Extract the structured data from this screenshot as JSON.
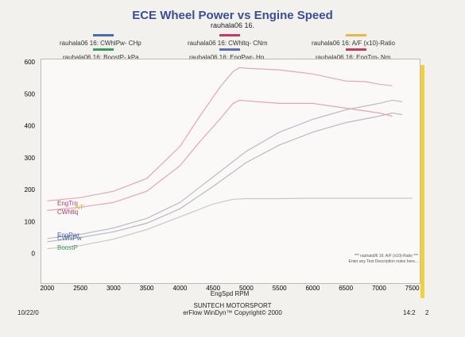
{
  "chart_data": {
    "type": "line",
    "title": "ECE Wheel Power vs Engine Speed",
    "subtitle": "rauhala06 16.",
    "xlabel": "EngSpd  RPM",
    "ylabel": "",
    "xlim": [
      1900,
      7600
    ],
    "ylim": [
      -90,
      610
    ],
    "x_ticks": [
      2000,
      2500,
      3000,
      3500,
      4000,
      4500,
      5000,
      5500,
      6000,
      6500,
      7000,
      7500
    ],
    "y_ticks": [
      0,
      100,
      200,
      300,
      400,
      500,
      600
    ],
    "legend": [
      {
        "label": "rauhala06 16: CWhlPw- CHp",
        "color": "#4f6aa8"
      },
      {
        "label": "rauhala06 16: CWhltq- CNm",
        "color": "#c23c6a"
      },
      {
        "label": "rauhala06 16:  A/F  (x10)-Ratio",
        "color": "#e4b94a"
      },
      {
        "label": "rauhala06 16: BoostP- kPa",
        "color": "#3c9a5e"
      },
      {
        "label": "rauhala06 16: EngPwr-  Hp",
        "color": "#5c6fae"
      },
      {
        "label": "rauhala06 16: EngTrq-  Nm",
        "color": "#c23c6a"
      }
    ],
    "series": [
      {
        "name": "EngTrq",
        "color": "#e0a8b4",
        "x": [
          2000,
          2500,
          3000,
          3500,
          4000,
          4300,
          4600,
          4800,
          4900,
          5000,
          5500,
          6000,
          6500,
          6800,
          7000,
          7200
        ],
        "y": [
          165,
          175,
          195,
          235,
          335,
          430,
          520,
          570,
          582,
          580,
          575,
          562,
          540,
          538,
          530,
          525
        ]
      },
      {
        "name": "EngPwr",
        "color": "#b8bec8",
        "x": [
          2000,
          2500,
          3000,
          3500,
          4000,
          4500,
          5000,
          5500,
          6000,
          6500,
          7000,
          7200,
          7350
        ],
        "y": [
          47,
          60,
          80,
          110,
          160,
          240,
          320,
          380,
          420,
          450,
          470,
          480,
          475
        ]
      },
      {
        "name": "CWhlPw",
        "color": "#b5bac4",
        "x": [
          2000,
          2500,
          3000,
          3500,
          4000,
          4500,
          5000,
          5500,
          6000,
          6500,
          7000,
          7200,
          7350
        ],
        "y": [
          37,
          50,
          68,
          95,
          140,
          210,
          285,
          340,
          380,
          410,
          430,
          440,
          435
        ]
      },
      {
        "name": "CWhltq",
        "color": "#dfa7b2",
        "x": [
          2000,
          2500,
          3000,
          3500,
          4000,
          4300,
          4600,
          4800,
          4900,
          5000,
          5500,
          6000,
          6500,
          7000,
          7200
        ],
        "y": [
          135,
          145,
          160,
          195,
          275,
          350,
          420,
          470,
          480,
          478,
          470,
          470,
          455,
          440,
          430
        ]
      },
      {
        "name": "BoostP",
        "color": "#c8c8c8",
        "x": [
          2000,
          2500,
          3000,
          3500,
          4000,
          4500,
          4800,
          5000,
          5500,
          6000,
          6500,
          7000,
          7500
        ],
        "y": [
          15,
          25,
          45,
          75,
          115,
          155,
          170,
          172,
          172,
          173,
          173,
          173,
          173
        ]
      }
    ],
    "series_labels": [
      {
        "text": "EngTrq",
        "color": "#c23c6a"
      },
      {
        "text": "A/F",
        "color": "#d9b34c"
      },
      {
        "text": "CWhltq",
        "color": "#b03b6c"
      },
      {
        "text": "EngPwr",
        "color": "#4f6aa8"
      },
      {
        "text": "CWhlPw",
        "color": "#4f6aa8"
      },
      {
        "text": "BoostP",
        "color": "#3c9a5e"
      }
    ],
    "annotation": {
      "line1": "*** rauhala06 16:  A/F  (x10)-Ratio ***",
      "line2": "Enter any Test Description notes here..."
    },
    "grid": false,
    "legend_placement": "top"
  },
  "footer": {
    "date": "10/22/0",
    "company": "SUNTECH MOTORSPORT",
    "software": "erFlow WinDyn™   Copyright© 2000",
    "time": "14:2",
    "page": "2"
  }
}
